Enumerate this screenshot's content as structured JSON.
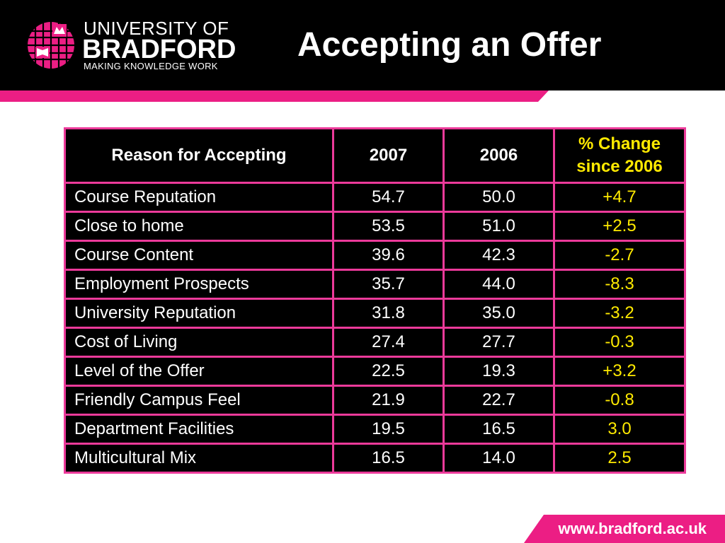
{
  "colors": {
    "brand_pink": "#ec1e84",
    "table_border": "#ec3a9a",
    "table_bg": "#000000",
    "change_text": "#ffea00",
    "text": "#ffffff"
  },
  "logo": {
    "line1": "UNIVERSITY OF",
    "line2": "BRADFORD",
    "line3": "MAKING KNOWLEDGE WORK"
  },
  "title": "Accepting an Offer",
  "table": {
    "headers": [
      "Reason for Accepting",
      "2007",
      "2006",
      "% Change since 2006"
    ],
    "rows": [
      [
        "Course Reputation",
        "54.7",
        "50.0",
        "+4.7"
      ],
      [
        "Close to home",
        "53.5",
        "51.0",
        "+2.5"
      ],
      [
        "Course Content",
        "39.6",
        "42.3",
        "-2.7"
      ],
      [
        "Employment Prospects",
        "35.7",
        "44.0",
        "-8.3"
      ],
      [
        "University Reputation",
        "31.8",
        "35.0",
        "-3.2"
      ],
      [
        "Cost of Living",
        "27.4",
        "27.7",
        "-0.3"
      ],
      [
        "Level of the Offer",
        "22.5",
        "19.3",
        "+3.2"
      ],
      [
        "Friendly Campus Feel",
        "21.9",
        "22.7",
        "-0.8"
      ],
      [
        "Department Facilities",
        "19.5",
        "16.5",
        "3.0"
      ],
      [
        "Multicultural Mix",
        "16.5",
        "14.0",
        "2.5"
      ]
    ]
  },
  "footer": {
    "url": "www.bradford.ac.uk"
  }
}
